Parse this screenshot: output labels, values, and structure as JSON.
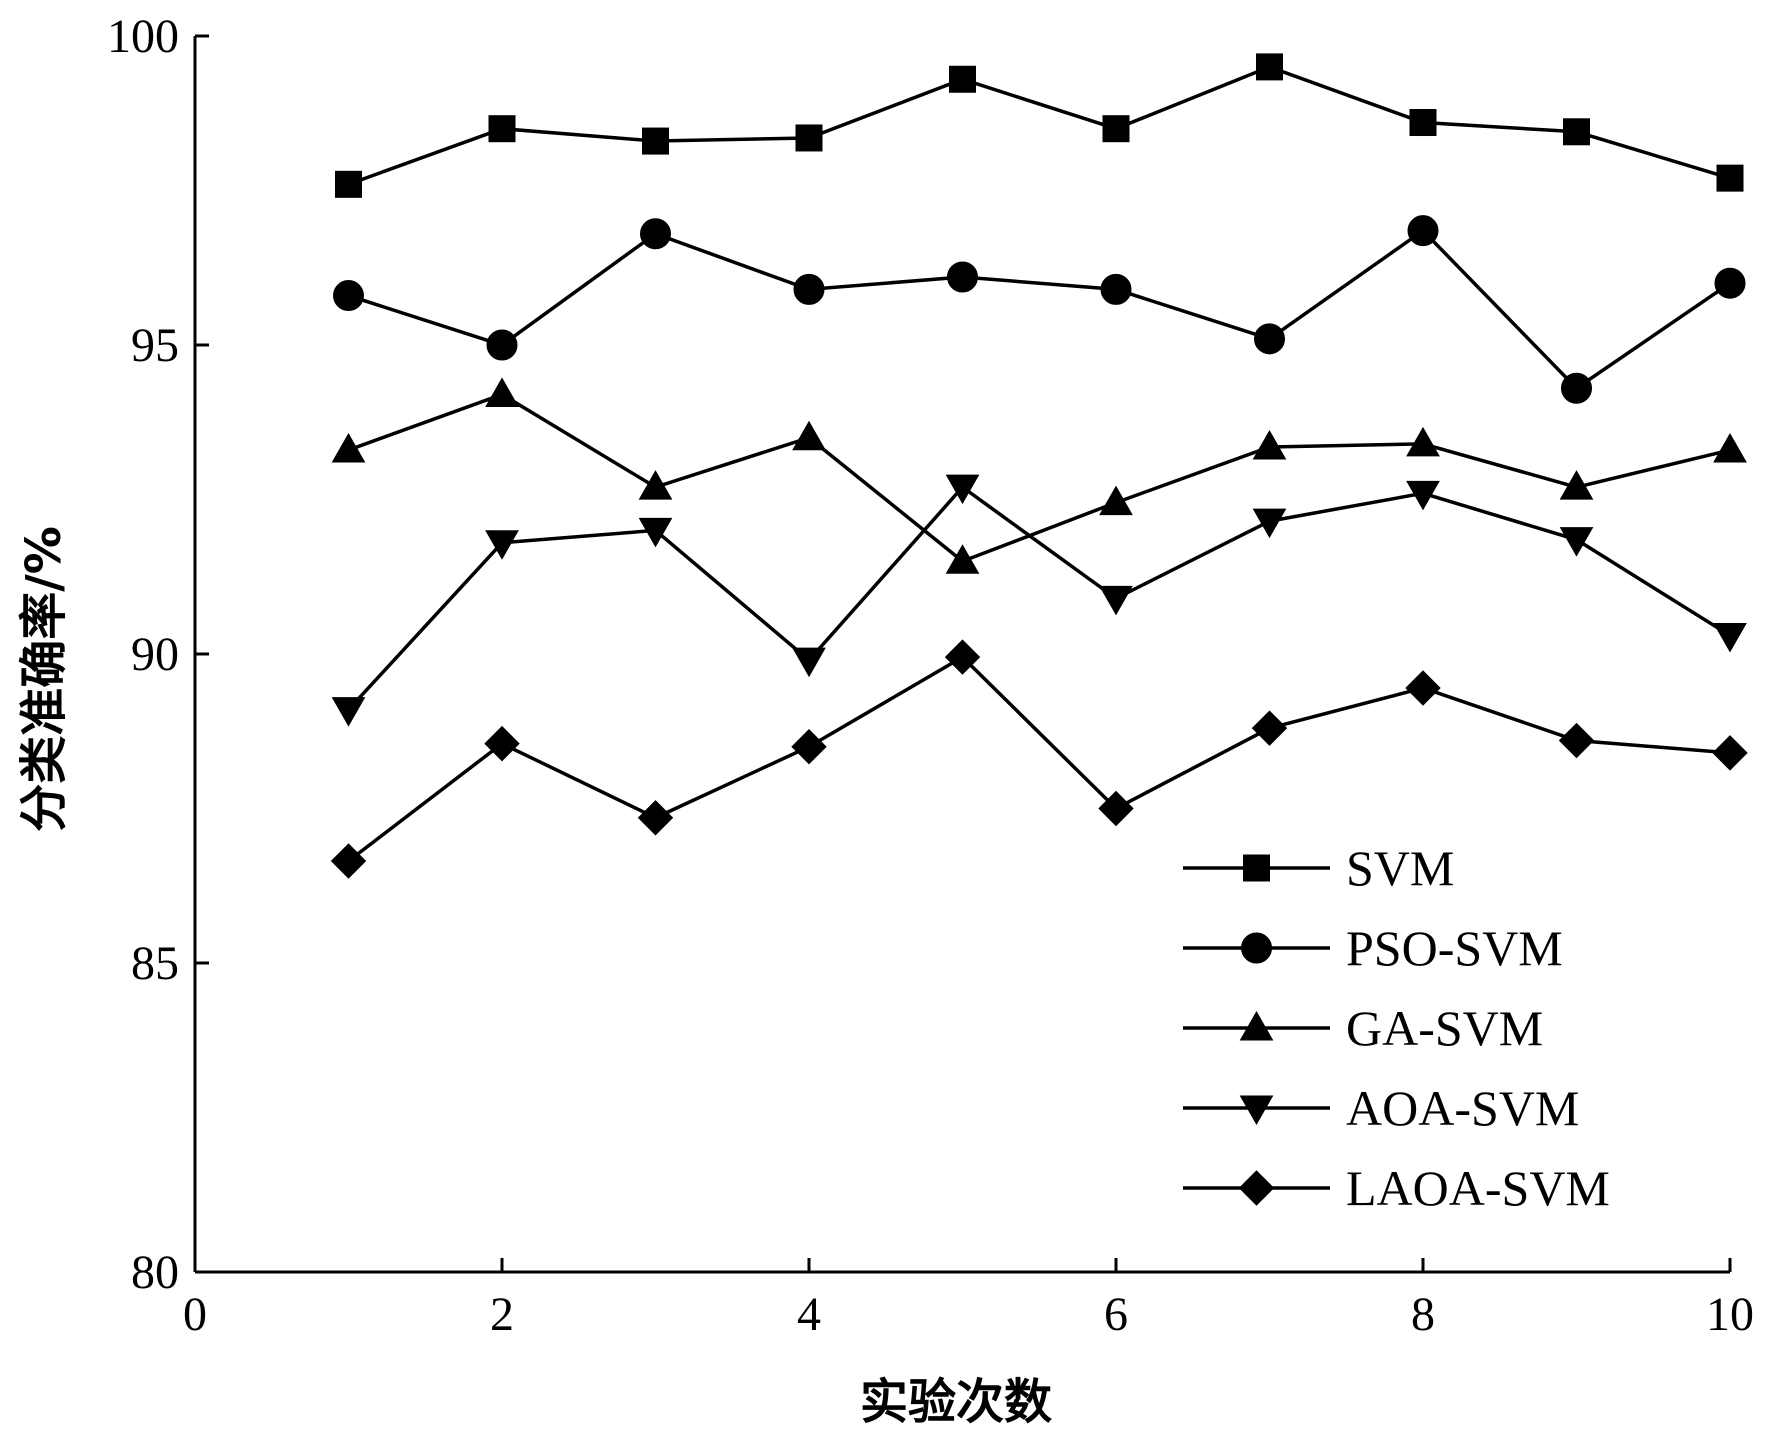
{
  "chart_data": {
    "type": "line",
    "xlabel": "实验次数",
    "ylabel": "分类准确率/%",
    "xlim": [
      0,
      10
    ],
    "ylim": [
      80,
      100
    ],
    "xticks": [
      0,
      2,
      4,
      6,
      8,
      10
    ],
    "xtick_labels": [
      "0",
      "2",
      "4",
      "6",
      "8",
      "10"
    ],
    "yticks": [
      80,
      85,
      90,
      95,
      100
    ],
    "ytick_labels": [
      "80",
      "85",
      "90",
      "95",
      "100"
    ],
    "grid": false,
    "legend_position": "bottom-right",
    "x": [
      1,
      2,
      3,
      4,
      5,
      6,
      7,
      8,
      9,
      10
    ],
    "series": [
      {
        "name": "SVM",
        "marker": "square",
        "values": [
          97.6,
          98.5,
          98.3,
          98.35,
          99.3,
          98.5,
          99.5,
          98.6,
          98.45,
          97.7
        ]
      },
      {
        "name": "PSO-SVM",
        "marker": "circle",
        "values": [
          95.8,
          95.0,
          96.8,
          95.9,
          96.1,
          95.9,
          95.1,
          96.85,
          94.3,
          96.0
        ]
      },
      {
        "name": "GA-SVM",
        "marker": "triangle-up",
        "values": [
          93.3,
          94.2,
          92.7,
          93.5,
          91.5,
          92.45,
          93.35,
          93.4,
          92.7,
          93.3
        ]
      },
      {
        "name": "AOA-SVM",
        "marker": "triangle-down",
        "values": [
          89.1,
          91.8,
          92.0,
          89.9,
          92.7,
          90.9,
          92.15,
          92.6,
          91.85,
          90.3
        ]
      },
      {
        "name": "LAOA-SVM",
        "marker": "diamond",
        "values": [
          86.65,
          88.55,
          87.35,
          88.5,
          89.95,
          87.5,
          88.8,
          89.45,
          88.6,
          88.4
        ]
      }
    ]
  }
}
